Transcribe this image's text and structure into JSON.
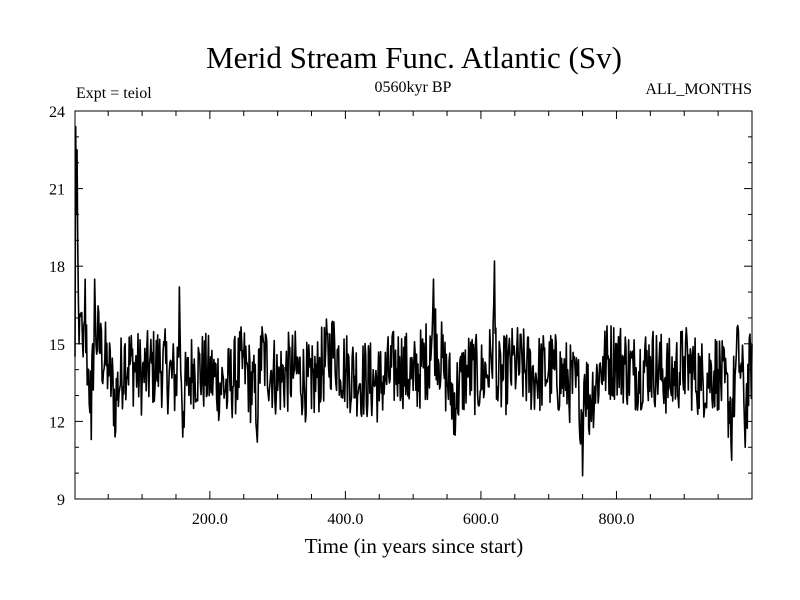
{
  "chart_data": {
    "type": "line",
    "title": "Merid Stream Func. Atlantic (Sv)",
    "subtitle_left": "Expt = teiol",
    "subtitle_center": "0560kyr BP",
    "subtitle_right": "ALL_MONTHS",
    "xlabel": "Time (in years since start)",
    "ylabel": "",
    "xlim": [
      1,
      1000
    ],
    "ylim": [
      9,
      24
    ],
    "x_ticks": [
      200,
      400,
      600,
      800
    ],
    "x_tick_labels": [
      "200.0",
      "400.0",
      "600.0",
      "800.0"
    ],
    "y_ticks": [
      9,
      12,
      15,
      18,
      21,
      24
    ],
    "y_tick_labels": [
      "9",
      "12",
      "15",
      "18",
      "21",
      "24"
    ],
    "grid": false,
    "series": [
      {
        "name": "Merid Stream Func. Atlantic",
        "color": "#000000",
        "x": [
          1,
          2,
          3,
          4,
          5,
          7,
          10,
          13,
          16,
          20,
          25,
          30,
          40,
          50,
          60,
          75,
          100,
          125,
          150,
          155,
          160,
          175,
          200,
          225,
          250,
          270,
          275,
          300,
          325,
          350,
          380,
          400,
          425,
          450,
          480,
          500,
          525,
          530,
          545,
          560,
          580,
          600,
          615,
          620,
          625,
          650,
          680,
          700,
          725,
          745,
          750,
          752,
          760,
          780,
          800,
          825,
          850,
          880,
          900,
          925,
          950,
          970,
          980,
          990,
          1000
        ],
        "values": [
          14.5,
          23.4,
          20.0,
          22.5,
          19.0,
          15.0,
          16.2,
          14.5,
          17.5,
          14.0,
          11.3,
          17.5,
          15.5,
          14.2,
          11.4,
          15.0,
          13.5,
          14.5,
          13.0,
          17.2,
          11.4,
          14.2,
          13.5,
          12.5,
          14.5,
          11.2,
          15.3,
          13.2,
          14.0,
          12.5,
          15.8,
          14.0,
          13.2,
          12.8,
          14.5,
          13.2,
          15.3,
          17.5,
          14.0,
          11.5,
          14.0,
          13.2,
          14.5,
          18.2,
          12.8,
          14.5,
          13.5,
          14.0,
          13.2,
          12.0,
          9.9,
          13.5,
          11.5,
          14.5,
          15.0,
          13.8,
          14.5,
          13.2,
          14.5,
          13.2,
          14.0,
          10.5,
          15.5,
          11.0,
          15.0
        ]
      }
    ]
  }
}
